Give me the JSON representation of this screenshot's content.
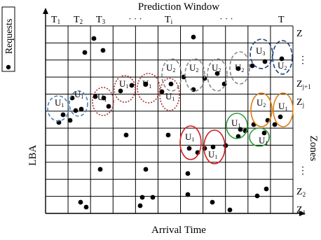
{
  "title": "Prediction Window",
  "xlabel": "Arrival Time",
  "ylabel": "LBA",
  "legend_label": "Requests",
  "right_label": "Zones",
  "time_labels": [
    "T",
    "T",
    "T",
    "· · ·",
    "T",
    "· · ·",
    "T"
  ],
  "time_subs": [
    "1",
    "2",
    "3",
    "",
    "i",
    "",
    ""
  ],
  "zone_labels": [
    {
      "main": "Z",
      "sub": ""
    },
    {
      "main": "⋮",
      "sub": ""
    },
    {
      "main": "Z",
      "sub": "j+1"
    },
    {
      "main": "Z",
      "sub": "j"
    },
    {
      "main": "⋮",
      "sub": ""
    },
    {
      "main": "Z",
      "sub": "2"
    },
    {
      "main": "Z",
      "sub": "1"
    }
  ],
  "colors": {
    "grid": "#000000",
    "blue_dashed": "#4a7fc0",
    "dark_red_dotted": "#a83232",
    "gray_dashed": "#888888",
    "navy_dashed": "#1f3f7a",
    "orange": "#e07b10",
    "green": "#2e9b3a",
    "red": "#d41f1f"
  },
  "clusters": [
    {
      "label": "U",
      "sub": "1",
      "color": "blue_dashed"
    },
    {
      "label": "U",
      "sub": "1",
      "color": "blue_dashed"
    },
    {
      "label": "U",
      "sub": "1",
      "color": "dark_red_dotted"
    },
    {
      "label": "U",
      "sub": "1",
      "color": "dark_red_dotted"
    },
    {
      "label": "U",
      "sub": "1",
      "color": "dark_red_dotted"
    },
    {
      "label": "U",
      "sub": "1",
      "color": "dark_red_dotted"
    },
    {
      "label": "U",
      "sub": "2",
      "color": "gray_dashed"
    },
    {
      "label": "U",
      "sub": "2",
      "color": "gray_dashed"
    },
    {
      "label": "U",
      "sub": "2",
      "color": "gray_dashed"
    },
    {
      "label": "U",
      "sub": "2",
      "color": "gray_dashed"
    },
    {
      "label": "U",
      "sub": "3",
      "color": "navy_dashed"
    },
    {
      "label": "U",
      "sub": "2",
      "color": "navy_dashed"
    },
    {
      "label": "U",
      "sub": "2",
      "color": "orange"
    },
    {
      "label": "U",
      "sub": "1",
      "color": "orange"
    },
    {
      "label": "U",
      "sub": "1",
      "color": "green"
    },
    {
      "label": "U",
      "sub": "1",
      "color": "green"
    },
    {
      "label": "U",
      "sub": "1",
      "color": "red"
    },
    {
      "label": "U",
      "sub": "1",
      "color": "red"
    }
  ]
}
